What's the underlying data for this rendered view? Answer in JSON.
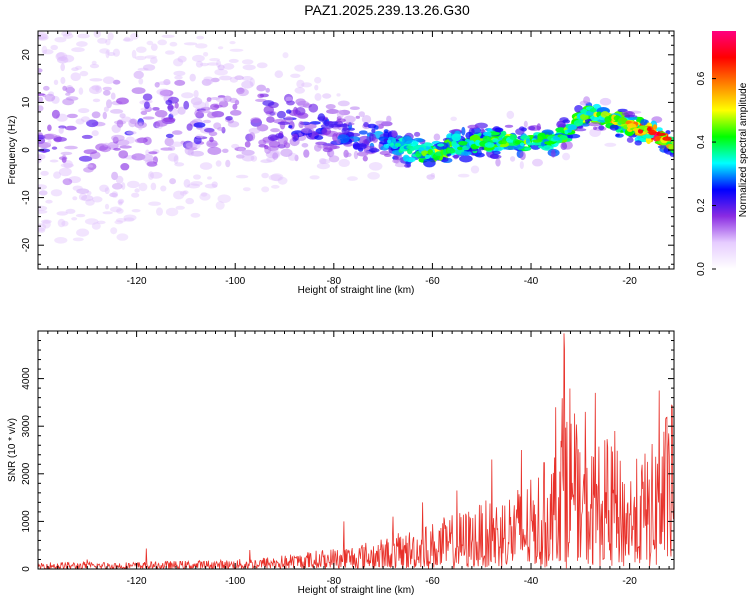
{
  "figure": {
    "title": "PAZ1.2025.239.13.26.G30",
    "colors": {
      "axis": "#000000",
      "snr_line": "#e8312a"
    }
  },
  "chart_data": [
    {
      "type": "heatmap",
      "title": "PAZ1.2025.239.13.26.G30",
      "xlabel": "Height of straight line (km)",
      "ylabel": "Frequency (Hz)",
      "xlim": [
        -140,
        -11
      ],
      "ylim": [
        -25,
        25
      ],
      "xticks": [
        -120,
        -100,
        -80,
        -60,
        -40,
        -20
      ],
      "yticks": [
        -20,
        -10,
        0,
        10,
        20
      ],
      "colorbar": {
        "label": "Normalized spectral amplitude",
        "range": [
          0,
          0.75
        ],
        "ticks": [
          0.0,
          0.2,
          0.4,
          0.6
        ],
        "colormap": [
          "#ffffff",
          "#e6ccff",
          "#8a2be2",
          "#0000ff",
          "#00ffff",
          "#00ff00",
          "#ffff00",
          "#ff8000",
          "#ff0000",
          "#ff0080"
        ]
      },
      "ridge": [
        {
          "x": -140,
          "f": 4,
          "amp": 0.18,
          "spread": 14
        },
        {
          "x": -120,
          "f": 5,
          "amp": 0.18,
          "spread": 12
        },
        {
          "x": -100,
          "f": 6,
          "amp": 0.2,
          "spread": 9
        },
        {
          "x": -90,
          "f": 6,
          "amp": 0.22,
          "spread": 7
        },
        {
          "x": -80,
          "f": 4,
          "amp": 0.25,
          "spread": 5
        },
        {
          "x": -70,
          "f": 2,
          "amp": 0.3,
          "spread": 4
        },
        {
          "x": -65,
          "f": 0,
          "amp": 0.4,
          "spread": 3
        },
        {
          "x": -60,
          "f": -1,
          "amp": 0.45,
          "spread": 3
        },
        {
          "x": -55,
          "f": 1,
          "amp": 0.42,
          "spread": 3
        },
        {
          "x": -45,
          "f": 2,
          "amp": 0.45,
          "spread": 3
        },
        {
          "x": -35,
          "f": 2,
          "amp": 0.4,
          "spread": 3
        },
        {
          "x": -28,
          "f": 8,
          "amp": 0.45,
          "spread": 2.5
        },
        {
          "x": -20,
          "f": 5,
          "amp": 0.55,
          "spread": 2.5
        },
        {
          "x": -14,
          "f": 3,
          "amp": 0.75,
          "spread": 2
        },
        {
          "x": -11,
          "f": 1,
          "amp": 0.5,
          "spread": 2
        }
      ]
    },
    {
      "type": "line",
      "xlabel": "Height of straight line (km)",
      "ylabel": "SNR (10 * v/v)",
      "xlim": [
        -140,
        -11
      ],
      "ylim": [
        0,
        5000
      ],
      "xticks": [
        -120,
        -100,
        -80,
        -60,
        -40,
        -20
      ],
      "yticks": [
        0,
        1000,
        2000,
        3000,
        4000
      ],
      "envelope": [
        {
          "x": -140,
          "y": 150
        },
        {
          "x": -120,
          "y": 150
        },
        {
          "x": -100,
          "y": 200
        },
        {
          "x": -90,
          "y": 300
        },
        {
          "x": -80,
          "y": 450
        },
        {
          "x": -70,
          "y": 650
        },
        {
          "x": -60,
          "y": 1000
        },
        {
          "x": -50,
          "y": 1400
        },
        {
          "x": -40,
          "y": 1900
        },
        {
          "x": -35,
          "y": 2600
        },
        {
          "x": -33,
          "y": 4950
        },
        {
          "x": -30,
          "y": 2400
        },
        {
          "x": -25,
          "y": 2800
        },
        {
          "x": -20,
          "y": 2200
        },
        {
          "x": -15,
          "y": 2700
        },
        {
          "x": -12,
          "y": 3500
        }
      ],
      "peaks": [
        {
          "x": -130,
          "y": 200
        },
        {
          "x": -118,
          "y": 430
        },
        {
          "x": -97,
          "y": 400
        },
        {
          "x": -78,
          "y": 1000
        },
        {
          "x": -68,
          "y": 1100
        },
        {
          "x": -62,
          "y": 1400
        },
        {
          "x": -55,
          "y": 1650
        },
        {
          "x": -48,
          "y": 2300
        },
        {
          "x": -42,
          "y": 2500
        },
        {
          "x": -35,
          "y": 3400
        },
        {
          "x": -33.3,
          "y": 4950
        },
        {
          "x": -29,
          "y": 3300
        },
        {
          "x": -27,
          "y": 3700
        },
        {
          "x": -23,
          "y": 2900
        },
        {
          "x": -14,
          "y": 3750
        },
        {
          "x": -11.5,
          "y": 3450
        }
      ]
    }
  ]
}
